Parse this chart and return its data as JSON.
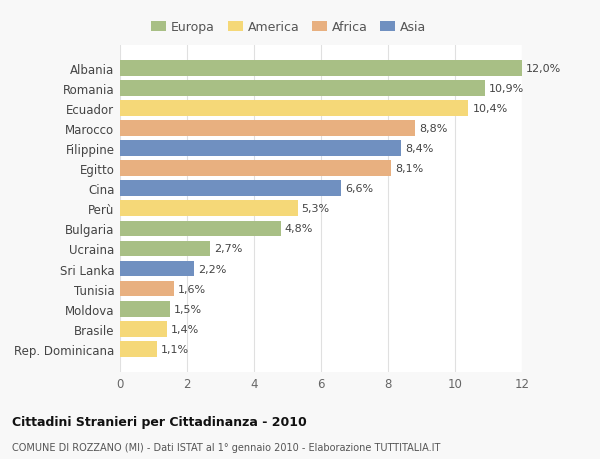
{
  "countries": [
    "Albania",
    "Romania",
    "Ecuador",
    "Marocco",
    "Filippine",
    "Egitto",
    "Cina",
    "Perù",
    "Bulgaria",
    "Ucraina",
    "Sri Lanka",
    "Tunisia",
    "Moldova",
    "Brasile",
    "Rep. Dominicana"
  ],
  "values": [
    12.0,
    10.9,
    10.4,
    8.8,
    8.4,
    8.1,
    6.6,
    5.3,
    4.8,
    2.7,
    2.2,
    1.6,
    1.5,
    1.4,
    1.1
  ],
  "labels": [
    "12,0%",
    "10,9%",
    "10,4%",
    "8,8%",
    "8,4%",
    "8,1%",
    "6,6%",
    "5,3%",
    "4,8%",
    "2,7%",
    "2,2%",
    "1,6%",
    "1,5%",
    "1,4%",
    "1,1%"
  ],
  "continents": [
    "Europa",
    "Europa",
    "America",
    "Africa",
    "Asia",
    "Africa",
    "Asia",
    "America",
    "Europa",
    "Europa",
    "Asia",
    "Africa",
    "Europa",
    "America",
    "America"
  ],
  "colors": {
    "Europa": "#a8bf85",
    "America": "#f5d878",
    "Africa": "#e8b080",
    "Asia": "#7090c0"
  },
  "legend_order": [
    "Europa",
    "America",
    "Africa",
    "Asia"
  ],
  "title": "Cittadini Stranieri per Cittadinanza - 2010",
  "subtitle": "COMUNE DI ROZZANO (MI) - Dati ISTAT al 1° gennaio 2010 - Elaborazione TUTTITALIA.IT",
  "xlim": [
    0,
    12
  ],
  "xticks": [
    0,
    2,
    4,
    6,
    8,
    10,
    12
  ],
  "background_color": "#f8f8f8",
  "plot_bg_color": "#ffffff",
  "grid_color": "#e0e0e0",
  "bar_height": 0.78
}
